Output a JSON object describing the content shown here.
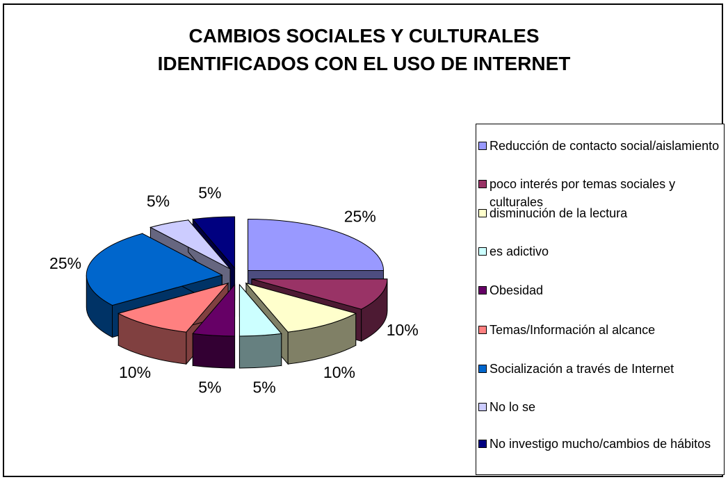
{
  "chart_data": {
    "type": "pie",
    "title_lines": [
      "CAMBIOS SOCIALES Y CULTURALES",
      "IDENTIFICADOS CON EL USO DE INTERNET"
    ],
    "slices": [
      {
        "label": "Reducción de contacto social/aislamiento",
        "value": 25,
        "value_label": "25%",
        "color": "#9999FF",
        "side_color": "#4D4D80"
      },
      {
        "label": "poco interés por temas sociales y culturales",
        "value": 10,
        "value_label": "10%",
        "color": "#993366",
        "side_color": "#4D1A33"
      },
      {
        "label": "disminución de la lectura",
        "value": 10,
        "value_label": "10%",
        "color": "#FFFFCC",
        "side_color": "#808066"
      },
      {
        "label": "es adictivo",
        "value": 5,
        "value_label": "5%",
        "color": "#CCFFFF",
        "side_color": "#668080"
      },
      {
        "label": "Obesidad",
        "value": 5,
        "value_label": "5%",
        "color": "#660066",
        "side_color": "#330033"
      },
      {
        "label": "Temas/Información al alcance",
        "value": 10,
        "value_label": "10%",
        "color": "#FF8080",
        "side_color": "#804040"
      },
      {
        "label": "Socialización a través de Internet",
        "value": 25,
        "value_label": "25%",
        "color": "#0066CC",
        "side_color": "#003366"
      },
      {
        "label": "No lo se",
        "value": 5,
        "value_label": "5%",
        "color": "#CCCCFF",
        "side_color": "#666680"
      },
      {
        "label": "No investigo mucho/cambios de hábitos",
        "value": 5,
        "value_label": "5%",
        "color": "#000080",
        "side_color": "#000040"
      }
    ],
    "legend_position": "right",
    "exploded": true,
    "three_d": true
  }
}
